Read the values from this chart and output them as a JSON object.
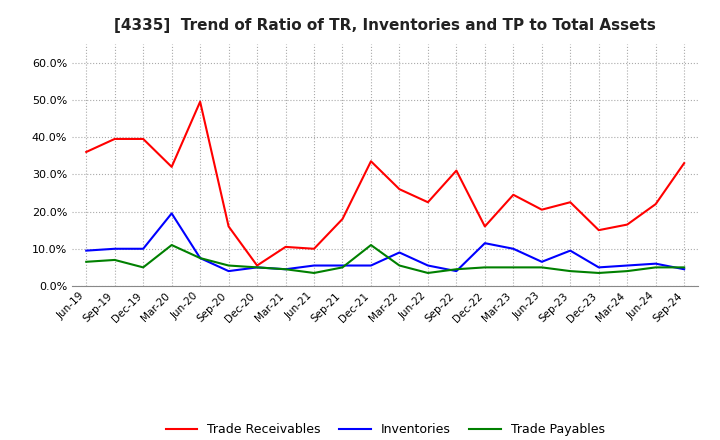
{
  "title": "[4335]  Trend of Ratio of TR, Inventories and TP to Total Assets",
  "x_labels": [
    "Jun-19",
    "Sep-19",
    "Dec-19",
    "Mar-20",
    "Jun-20",
    "Sep-20",
    "Dec-20",
    "Mar-21",
    "Jun-21",
    "Sep-21",
    "Dec-21",
    "Mar-22",
    "Jun-22",
    "Sep-22",
    "Dec-22",
    "Mar-23",
    "Jun-23",
    "Sep-23",
    "Dec-23",
    "Mar-24",
    "Jun-24",
    "Sep-24"
  ],
  "trade_receivables": [
    36.0,
    39.5,
    39.5,
    32.0,
    49.5,
    16.0,
    5.5,
    10.5,
    10.0,
    18.0,
    33.5,
    26.0,
    22.5,
    31.0,
    16.0,
    24.5,
    20.5,
    22.5,
    15.0,
    16.5,
    22.0,
    33.0
  ],
  "inventories": [
    9.5,
    10.0,
    10.0,
    19.5,
    7.5,
    4.0,
    5.0,
    4.5,
    5.5,
    5.5,
    5.5,
    9.0,
    5.5,
    4.0,
    11.5,
    10.0,
    6.5,
    9.5,
    5.0,
    5.5,
    6.0,
    4.5
  ],
  "trade_payables": [
    6.5,
    7.0,
    5.0,
    11.0,
    7.5,
    5.5,
    5.0,
    4.5,
    3.5,
    5.0,
    11.0,
    5.5,
    3.5,
    4.5,
    5.0,
    5.0,
    5.0,
    4.0,
    3.5,
    4.0,
    5.0,
    5.0
  ],
  "tr_color": "#ff0000",
  "inv_color": "#0000ff",
  "tp_color": "#008000",
  "bg_color": "#ffffff",
  "plot_bg_color": "#ffffff",
  "grid_color": "#aaaaaa",
  "ylim": [
    0,
    65
  ],
  "yticks": [
    0,
    10,
    20,
    30,
    40,
    50,
    60
  ],
  "legend_labels": [
    "Trade Receivables",
    "Inventories",
    "Trade Payables"
  ]
}
